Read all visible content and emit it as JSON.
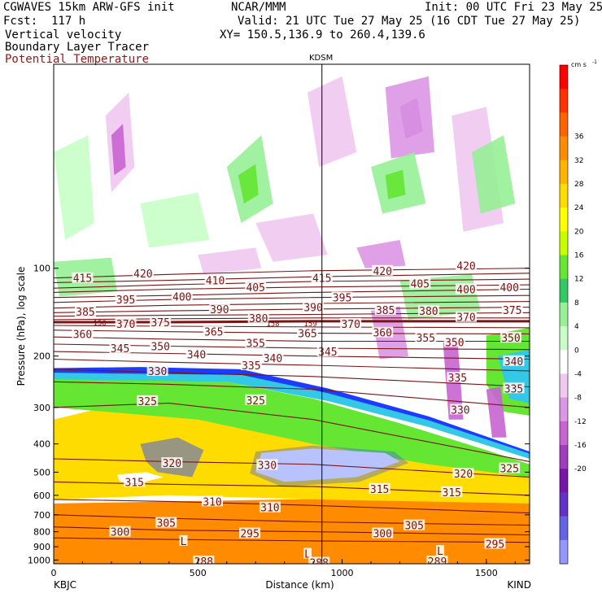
{
  "header": {
    "model_line": "CGWAVES 15km ARW-GFS init",
    "center_line": "NCAR/MMM",
    "init_line": "Init: 00 UTC Fri 23 May 25",
    "fcst_line": "Fcst:  117 h",
    "valid_line": "Valid: 21 UTC Tue 27 May 25 (16 CDT Tue 27 May 25)",
    "field1": "Vertical velocity",
    "field2": "Boundary Layer Tracer",
    "field3": "Potential Temperature",
    "xy_line": "XY= 150.5,136.9 to 260.4,139.6",
    "station_mid": "KDSM"
  },
  "colors": {
    "theta": "#7a1414",
    "field3_text": "#8b1a1a",
    "bg_white": "#ffffff"
  },
  "colorbar": {
    "unit": "cm s",
    "unit_exp": "-1",
    "levels": [
      36,
      32,
      28,
      24,
      20,
      16,
      12,
      8,
      4,
      0,
      -4,
      -8,
      -12,
      -16,
      -20
    ],
    "colors": [
      "#ff0000",
      "#ff3200",
      "#ff6400",
      "#ff8c00",
      "#ffb400",
      "#ffdc00",
      "#ffff00",
      "#c8ff00",
      "#64e632",
      "#32c864",
      "#96f096",
      "#c8ffc8",
      "#ffffff",
      "#f0c8f0",
      "#dc96e6",
      "#c864d2",
      "#a03cbe",
      "#7814aa",
      "#6432c8",
      "#6464e6",
      "#9696ff"
    ]
  },
  "chart_data": {
    "type": "heatmap",
    "title": "",
    "xlabel": "Distance (km)",
    "ylabel": "Pressure (hPa), log scale",
    "x_ticks": [
      "0",
      "500",
      "1000",
      "1500"
    ],
    "x_tick_values": [
      0,
      500,
      1000,
      1500
    ],
    "xlim": [
      0,
      1650
    ],
    "y_ticks": [
      "100",
      "200",
      "300",
      "400",
      "500",
      "600",
      "700",
      "800",
      "900",
      "1000"
    ],
    "y_tick_values": [
      100,
      200,
      300,
      400,
      500,
      600,
      700,
      800,
      900,
      1000
    ],
    "ylim": [
      1030,
      20
    ],
    "y_scale": "log",
    "left_station": "KBJC",
    "right_station": "KIND",
    "mid_station": "KDSM",
    "mid_station_km": 930,
    "theta_contours": [
      {
        "label": "420",
        "points": [
          [
            0,
            108
          ],
          [
            400,
            105
          ],
          [
            900,
            102
          ],
          [
            1650,
            100
          ]
        ]
      },
      {
        "label": "415",
        "points": [
          [
            0,
            112
          ],
          [
            400,
            110
          ],
          [
            900,
            107
          ],
          [
            1650,
            104
          ]
        ]
      },
      {
        "label": "410",
        "points": [
          [
            0,
            117
          ],
          [
            400,
            114
          ],
          [
            900,
            111
          ],
          [
            1650,
            109
          ]
        ]
      },
      {
        "label": "405",
        "points": [
          [
            0,
            121
          ],
          [
            400,
            118
          ],
          [
            900,
            116
          ],
          [
            1650,
            114
          ]
        ]
      },
      {
        "label": "400",
        "points": [
          [
            0,
            126
          ],
          [
            400,
            124
          ],
          [
            900,
            121
          ],
          [
            1650,
            118
          ]
        ]
      },
      {
        "label": "395",
        "points": [
          [
            0,
            131
          ],
          [
            400,
            128
          ],
          [
            900,
            126
          ],
          [
            1650,
            124
          ]
        ]
      },
      {
        "label": "390",
        "points": [
          [
            0,
            137
          ],
          [
            400,
            134
          ],
          [
            900,
            132
          ],
          [
            1650,
            130
          ]
        ]
      },
      {
        "label": "385",
        "points": [
          [
            0,
            142
          ],
          [
            400,
            140
          ],
          [
            900,
            138
          ],
          [
            1650,
            136
          ]
        ]
      },
      {
        "label": "380",
        "points": [
          [
            0,
            146
          ],
          [
            400,
            145
          ],
          [
            900,
            144
          ],
          [
            1650,
            142
          ]
        ]
      },
      {
        "label": "375",
        "points": [
          [
            0,
            150
          ],
          [
            400,
            149
          ],
          [
            900,
            148
          ],
          [
            1650,
            148
          ]
        ]
      },
      {
        "label": "370",
        "points": [
          [
            0,
            153
          ],
          [
            400,
            153
          ],
          [
            900,
            152
          ],
          [
            1650,
            152
          ]
        ]
      },
      {
        "label": "365",
        "points": [
          [
            0,
            157
          ],
          [
            400,
            158
          ],
          [
            900,
            159
          ],
          [
            1650,
            160
          ]
        ]
      },
      {
        "label": "360",
        "points": [
          [
            0,
            163
          ],
          [
            400,
            165
          ],
          [
            900,
            167
          ],
          [
            1650,
            168
          ]
        ]
      },
      {
        "label": "355",
        "points": [
          [
            0,
            172
          ],
          [
            400,
            175
          ],
          [
            900,
            178
          ],
          [
            1650,
            178
          ]
        ]
      },
      {
        "label": "350",
        "points": [
          [
            0,
            182
          ],
          [
            400,
            185
          ],
          [
            900,
            188
          ],
          [
            1650,
            190
          ]
        ]
      },
      {
        "label": "345",
        "points": [
          [
            0,
            193
          ],
          [
            400,
            196
          ],
          [
            900,
            200
          ],
          [
            1650,
            205
          ]
        ]
      },
      {
        "label": "340",
        "points": [
          [
            0,
            205
          ],
          [
            400,
            210
          ],
          [
            900,
            215
          ],
          [
            1650,
            225
          ]
        ]
      },
      {
        "label": "335",
        "points": [
          [
            0,
            222
          ],
          [
            400,
            228
          ],
          [
            900,
            235
          ],
          [
            1650,
            255
          ]
        ]
      },
      {
        "label": "330",
        "points": [
          [
            0,
            245
          ],
          [
            400,
            250
          ],
          [
            900,
            260
          ],
          [
            1650,
            300
          ]
        ]
      },
      {
        "label": "325",
        "points": [
          [
            0,
            300
          ],
          [
            400,
            290
          ],
          [
            900,
            330
          ],
          [
            1650,
            460
          ]
        ]
      },
      {
        "label": "320",
        "points": [
          [
            0,
            450
          ],
          [
            400,
            460
          ],
          [
            900,
            470
          ],
          [
            1650,
            520
          ]
        ]
      },
      {
        "label": "315",
        "points": [
          [
            0,
            540
          ],
          [
            400,
            550
          ],
          [
            900,
            560
          ],
          [
            1650,
            600
          ]
        ]
      },
      {
        "label": "310",
        "points": [
          [
            0,
            620
          ],
          [
            400,
            630
          ],
          [
            900,
            650
          ],
          [
            1650,
            690
          ]
        ]
      },
      {
        "label": "305",
        "points": [
          [
            0,
            700
          ],
          [
            400,
            720
          ],
          [
            900,
            740
          ],
          [
            1650,
            760
          ]
        ]
      },
      {
        "label": "300",
        "points": [
          [
            0,
            770
          ],
          [
            400,
            790
          ],
          [
            900,
            800
          ],
          [
            1650,
            820
          ]
        ]
      },
      {
        "label": "295",
        "points": [
          [
            0,
            840
          ],
          [
            400,
            850
          ],
          [
            900,
            860
          ],
          [
            1650,
            870
          ]
        ]
      }
    ],
    "contour_labels": [
      {
        "text": "415",
        "x": 100,
        "p": 108
      },
      {
        "text": "420",
        "x": 310,
        "p": 104
      },
      {
        "text": "410",
        "x": 560,
        "p": 110
      },
      {
        "text": "415",
        "x": 930,
        "p": 108
      },
      {
        "text": "420",
        "x": 1140,
        "p": 102
      },
      {
        "text": "420",
        "x": 1430,
        "p": 98
      },
      {
        "text": "405",
        "x": 700,
        "p": 116
      },
      {
        "text": "405",
        "x": 1270,
        "p": 113
      },
      {
        "text": "400",
        "x": 1430,
        "p": 118
      },
      {
        "text": "400",
        "x": 1580,
        "p": 116
      },
      {
        "text": "395",
        "x": 250,
        "p": 128
      },
      {
        "text": "400",
        "x": 445,
        "p": 125
      },
      {
        "text": "395",
        "x": 1000,
        "p": 126
      },
      {
        "text": "385",
        "x": 110,
        "p": 141
      },
      {
        "text": "390",
        "x": 575,
        "p": 138
      },
      {
        "text": "390",
        "x": 900,
        "p": 136
      },
      {
        "text": "385",
        "x": 1150,
        "p": 139
      },
      {
        "text": "380",
        "x": 1300,
        "p": 140
      },
      {
        "text": "375",
        "x": 1590,
        "p": 139
      },
      {
        "text": "380",
        "x": 710,
        "p": 148
      },
      {
        "text": "370",
        "x": 1430,
        "p": 147
      },
      {
        "text": "370",
        "x": 250,
        "p": 155
      },
      {
        "text": "375",
        "x": 370,
        "p": 153
      },
      {
        "text": "370",
        "x": 1030,
        "p": 155
      },
      {
        "text": "360",
        "x": 100,
        "p": 168
      },
      {
        "text": "365",
        "x": 555,
        "p": 165
      },
      {
        "text": "365",
        "x": 880,
        "p": 167
      },
      {
        "text": "360",
        "x": 1140,
        "p": 166
      },
      {
        "text": "355",
        "x": 1290,
        "p": 173
      },
      {
        "text": "350",
        "x": 1390,
        "p": 179
      },
      {
        "text": "350",
        "x": 1585,
        "p": 173
      },
      {
        "text": "345",
        "x": 230,
        "p": 188
      },
      {
        "text": "350",
        "x": 370,
        "p": 185
      },
      {
        "text": "355",
        "x": 700,
        "p": 180
      },
      {
        "text": "345",
        "x": 950,
        "p": 193
      },
      {
        "text": "340",
        "x": 495,
        "p": 197
      },
      {
        "text": "340",
        "x": 760,
        "p": 203
      },
      {
        "text": "340",
        "x": 1595,
        "p": 208
      },
      {
        "text": "330",
        "x": 360,
        "p": 225
      },
      {
        "text": "335",
        "x": 685,
        "p": 215
      },
      {
        "text": "335",
        "x": 1400,
        "p": 237
      },
      {
        "text": "335",
        "x": 1595,
        "p": 258
      },
      {
        "text": "325",
        "x": 325,
        "p": 285
      },
      {
        "text": "325",
        "x": 700,
        "p": 283
      },
      {
        "text": "330",
        "x": 1410,
        "p": 305
      },
      {
        "text": "320",
        "x": 410,
        "p": 465
      },
      {
        "text": "330",
        "x": 740,
        "p": 472
      },
      {
        "text": "320",
        "x": 1420,
        "p": 505
      },
      {
        "text": "325",
        "x": 1580,
        "p": 485
      },
      {
        "text": "315",
        "x": 280,
        "p": 540
      },
      {
        "text": "315",
        "x": 1130,
        "p": 570
      },
      {
        "text": "315",
        "x": 1380,
        "p": 585
      },
      {
        "text": "310",
        "x": 550,
        "p": 630
      },
      {
        "text": "310",
        "x": 750,
        "p": 660
      },
      {
        "text": "305",
        "x": 390,
        "p": 745
      },
      {
        "text": "305",
        "x": 1250,
        "p": 760
      },
      {
        "text": "300",
        "x": 230,
        "p": 800
      },
      {
        "text": "295",
        "x": 680,
        "p": 810
      },
      {
        "text": "300",
        "x": 1140,
        "p": 810
      },
      {
        "text": "295",
        "x": 1530,
        "p": 880
      },
      {
        "text": "L",
        "x": 450,
        "p": 860
      },
      {
        "text": "L",
        "x": 880,
        "p": 950
      },
      {
        "text": "L",
        "x": 1340,
        "p": 930
      },
      {
        "text": "288",
        "x": 520,
        "p": 1010
      },
      {
        "text": "288",
        "x": 920,
        "p": 1020
      },
      {
        "text": "289",
        "x": 1330,
        "p": 1010
      },
      {
        "text": "150",
        "x": 160,
        "p": 152
      },
      {
        "text": "158",
        "x": 760,
        "p": 153
      },
      {
        "text": "159",
        "x": 890,
        "p": 153
      }
    ],
    "legend": "right"
  }
}
